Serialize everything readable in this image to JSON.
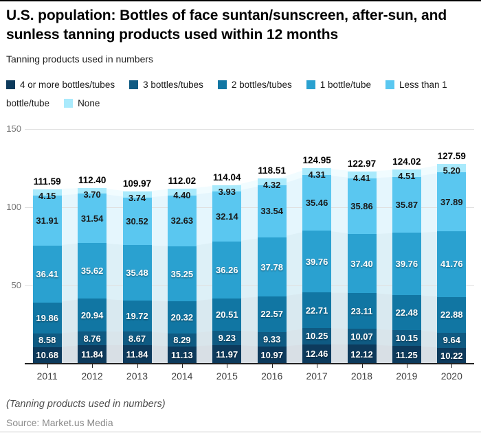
{
  "header": {
    "title": "U.S. population: Bottles of face suntan/sunscreen, after-sun, and sunless tanning products used within 12 months",
    "subtitle": "Tanning products used in numbers"
  },
  "chart_data": {
    "type": "bar",
    "stacked": true,
    "title": "U.S. population: Bottles of face suntan/sunscreen, after-sun, and sunless tanning products used within 12 months",
    "subtitle": "Tanning products used in numbers",
    "categories": [
      "2011",
      "2012",
      "2013",
      "2014",
      "2015",
      "2016",
      "2017",
      "2018",
      "2019",
      "2020"
    ],
    "series": [
      {
        "name": "4 or more bottles/tubes",
        "color": "#0d3a5c",
        "label_color": "#ffffff",
        "values": [
          10.68,
          11.84,
          11.84,
          11.13,
          11.97,
          10.97,
          12.46,
          12.12,
          11.25,
          10.22
        ]
      },
      {
        "name": "3 bottles/tubes",
        "color": "#0f5a82",
        "label_color": "#ffffff",
        "values": [
          8.58,
          8.76,
          8.67,
          8.29,
          9.23,
          9.33,
          10.25,
          10.07,
          10.15,
          9.64
        ]
      },
      {
        "name": "2 bottles/tubes",
        "color": "#1176a3",
        "label_color": "#ffffff",
        "values": [
          19.86,
          20.94,
          19.72,
          20.32,
          20.51,
          22.57,
          22.71,
          23.11,
          22.48,
          22.88
        ]
      },
      {
        "name": "1 bottle/tube",
        "color": "#2aa1d0",
        "label_color": "#ffffff",
        "values": [
          36.41,
          35.62,
          35.48,
          35.25,
          36.26,
          37.78,
          39.76,
          37.4,
          39.76,
          41.76
        ]
      },
      {
        "name": "Less than 1 bottle/tube",
        "color": "#5ac7f0",
        "label_color": "#1a1a1a",
        "values": [
          31.91,
          31.54,
          30.52,
          32.63,
          32.14,
          33.54,
          35.46,
          35.86,
          35.87,
          37.89
        ]
      },
      {
        "name": "None",
        "color": "#a9eafc",
        "label_color": "#1a1a1a",
        "values": [
          4.15,
          3.7,
          3.74,
          4.4,
          3.93,
          4.32,
          4.31,
          4.41,
          4.51,
          5.2
        ]
      }
    ],
    "totals": [
      111.59,
      112.4,
      109.97,
      112.02,
      114.04,
      118.51,
      124.95,
      122.97,
      124.02,
      127.59
    ],
    "xlabel": "",
    "ylabel": "",
    "ylim": [
      0,
      150
    ],
    "y_ticks": [
      50,
      100,
      150
    ],
    "grid": true,
    "legend_position": "top",
    "background": "light stacked area silhouette of same data behind bars"
  },
  "footer": {
    "note": "(Tanning products used in numbers)",
    "source": "Source: Market.us Media"
  },
  "colors": {
    "axis": "#212121",
    "grid": "#e0e0e0",
    "y_tick_label": "#757575",
    "x_tick_label": "#424242",
    "top_border": "#000000",
    "bottom_border": "#c9c9c9"
  }
}
